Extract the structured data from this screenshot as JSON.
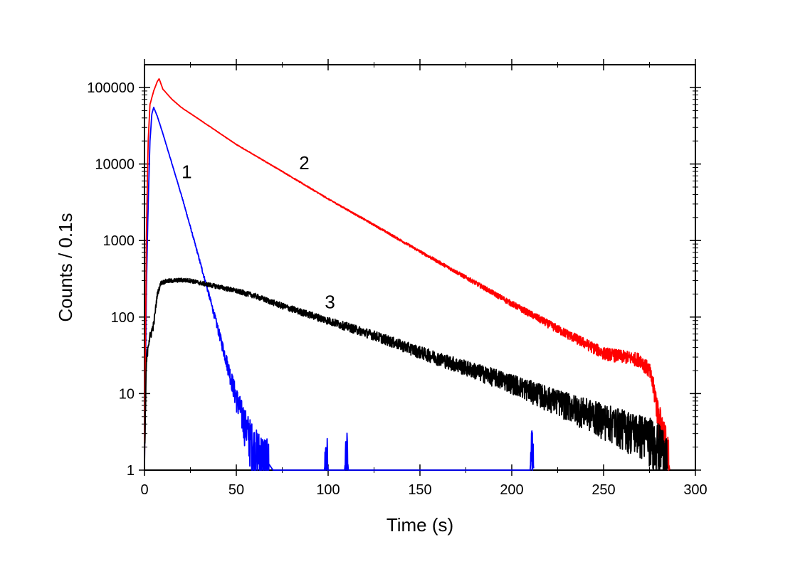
{
  "chart_data": {
    "type": "line",
    "title": "",
    "xlabel": "Time (s)",
    "ylabel": "Counts / 0.1s",
    "xlim": [
      0,
      300
    ],
    "ylim": [
      1,
      300000
    ],
    "yscale": "log",
    "grid": false,
    "legend": "none",
    "x_ticks": [
      0,
      50,
      100,
      150,
      200,
      250,
      300
    ],
    "x_tick_labels": [
      "0",
      "50",
      "100",
      "150",
      "200",
      "250",
      "300"
    ],
    "y_ticks": [
      1,
      10,
      100,
      1000,
      10000,
      100000
    ],
    "y_tick_labels": [
      "1",
      "10",
      "100",
      "1000",
      "10000",
      "100000"
    ],
    "series": [
      {
        "label": "1",
        "color": "#0000ff",
        "points": [
          [
            0,
            1
          ],
          [
            1,
            200
          ],
          [
            2,
            3000
          ],
          [
            3,
            20000
          ],
          [
            4,
            45000
          ],
          [
            5,
            55000
          ],
          [
            7,
            42000
          ],
          [
            10,
            25000
          ],
          [
            15,
            10000
          ],
          [
            20,
            4000
          ],
          [
            25,
            1500
          ],
          [
            30,
            550
          ],
          [
            35,
            200
          ],
          [
            40,
            70
          ],
          [
            45,
            25
          ],
          [
            50,
            9
          ],
          [
            55,
            4
          ],
          [
            60,
            2
          ],
          [
            65,
            1.5
          ],
          [
            70,
            1
          ],
          [
            75,
            1
          ],
          [
            98,
            1
          ],
          [
            99,
            2
          ],
          [
            100,
            1
          ],
          [
            109,
            1
          ],
          [
            110,
            2
          ],
          [
            111,
            1
          ],
          [
            210,
            1
          ],
          [
            211,
            2
          ],
          [
            212,
            1
          ]
        ]
      },
      {
        "label": "2",
        "color": "#ff0000",
        "points": [
          [
            0,
            1
          ],
          [
            1,
            1000
          ],
          [
            2,
            20000
          ],
          [
            3,
            60000
          ],
          [
            5,
            90000
          ],
          [
            7,
            120000
          ],
          [
            8,
            130000
          ],
          [
            10,
            95000
          ],
          [
            15,
            70000
          ],
          [
            20,
            55000
          ],
          [
            30,
            38000
          ],
          [
            50,
            18000
          ],
          [
            75,
            8000
          ],
          [
            100,
            3500
          ],
          [
            125,
            1600
          ],
          [
            150,
            720
          ],
          [
            175,
            330
          ],
          [
            200,
            150
          ],
          [
            225,
            70
          ],
          [
            250,
            34
          ],
          [
            270,
            28
          ],
          [
            275,
            20
          ],
          [
            278,
            10
          ],
          [
            280,
            5
          ],
          [
            283,
            3
          ],
          [
            286,
            1
          ]
        ]
      },
      {
        "label": "3",
        "color": "#000000",
        "points": [
          [
            0,
            1
          ],
          [
            1,
            25
          ],
          [
            2,
            45
          ],
          [
            3,
            55
          ],
          [
            5,
            80
          ],
          [
            7,
            200
          ],
          [
            9,
            280
          ],
          [
            12,
            295
          ],
          [
            20,
            305
          ],
          [
            25,
            300
          ],
          [
            30,
            280
          ],
          [
            40,
            250
          ],
          [
            50,
            220
          ],
          [
            60,
            190
          ],
          [
            75,
            140
          ],
          [
            100,
            90
          ],
          [
            125,
            58
          ],
          [
            150,
            35
          ],
          [
            175,
            22
          ],
          [
            200,
            14
          ],
          [
            220,
            9
          ],
          [
            240,
            6
          ],
          [
            260,
            4
          ],
          [
            275,
            3
          ],
          [
            283,
            2
          ],
          [
            285,
            1
          ]
        ]
      }
    ],
    "annotations": [
      {
        "text": "1",
        "x": 23,
        "y": 6500
      },
      {
        "text": "2",
        "x": 87,
        "y": 8500
      },
      {
        "text": "3",
        "x": 101,
        "y": 130
      }
    ]
  }
}
